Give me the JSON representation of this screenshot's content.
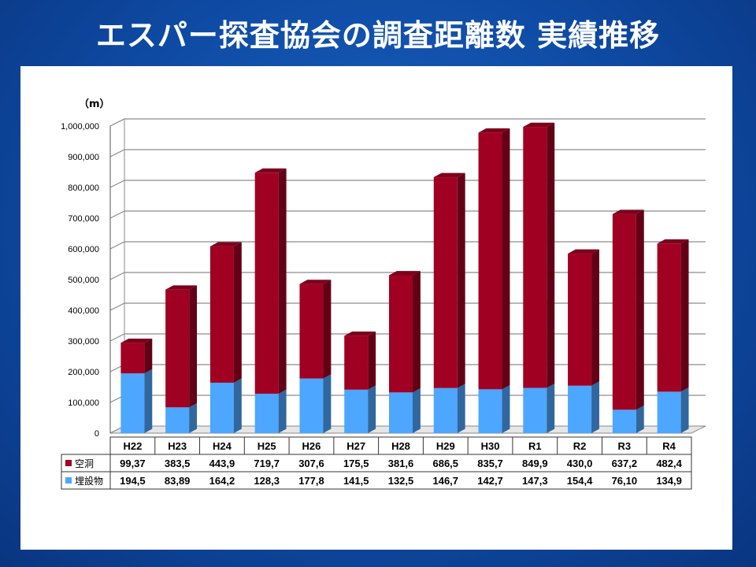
{
  "slide": {
    "title": "エスパー探査協会の調査距離数 実績推移"
  },
  "chart_data": {
    "type": "bar",
    "stacked": true,
    "three_d": true,
    "title": "エスパー探査協会の調査距離数 実績推移",
    "unit_label": "（m）",
    "categories": [
      "H22",
      "H23",
      "H24",
      "H25",
      "H26",
      "H27",
      "H28",
      "H29",
      "H30",
      "R1",
      "R2",
      "R3",
      "R4"
    ],
    "ylim": [
      0,
      1000000
    ],
    "y_ticks": [
      0,
      100000,
      200000,
      300000,
      400000,
      500000,
      600000,
      700000,
      800000,
      900000,
      1000000
    ],
    "y_tick_labels": [
      "0",
      "100,000",
      "200,000",
      "300,000",
      "400,000",
      "500,000",
      "600,000",
      "700,000",
      "800,000",
      "900,000",
      "1,000,000"
    ],
    "grid": true,
    "series": [
      {
        "name": "埋設物",
        "color": "#4da6ff",
        "values": [
          194500,
          83890,
          164200,
          128300,
          177800,
          141500,
          132500,
          146700,
          142700,
          147300,
          154400,
          76100,
          134900
        ],
        "table_labels": [
          "194,5",
          "83,89",
          "164,2",
          "128,3",
          "177,8",
          "141,5",
          "132,5",
          "146,7",
          "142,7",
          "147,3",
          "154,4",
          "76,10",
          "134,9"
        ]
      },
      {
        "name": "空洞",
        "color": "#a00022",
        "values": [
          99370,
          383500,
          443900,
          719700,
          307600,
          175500,
          381600,
          686500,
          835700,
          849900,
          430000,
          637200,
          482400
        ],
        "table_labels": [
          "99,37",
          "383,5",
          "443,9",
          "719,7",
          "307,6",
          "175,5",
          "381,6",
          "686,5",
          "835,7",
          "849,9",
          "430,0",
          "637,2",
          "482,4"
        ]
      }
    ],
    "legend_position": "data-table"
  }
}
